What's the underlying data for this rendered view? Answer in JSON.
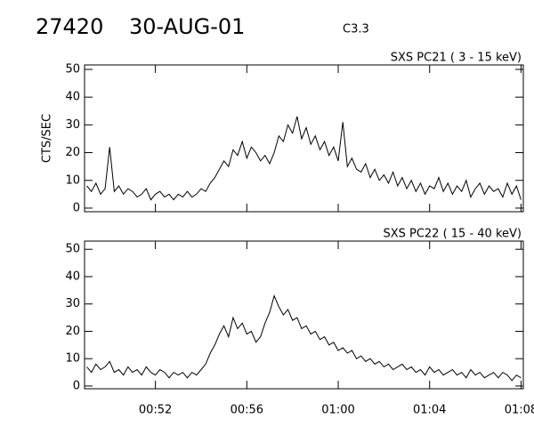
{
  "header": {
    "id": "27420",
    "date": "30-AUG-01",
    "class": "C3.3"
  },
  "chart_data": [
    {
      "type": "line",
      "title": "SXS PC21  (  3 - 15 keV)",
      "ylabel": "CTS/SEC",
      "color": "#000000",
      "xlim": [
        48.9,
        68.1
      ],
      "ylim": [
        -1.3,
        51.6
      ],
      "yticks": [
        0,
        10,
        20,
        30,
        40,
        50
      ],
      "xticks": [
        52,
        56,
        60,
        64,
        68
      ],
      "x": [
        49.0,
        49.2,
        49.4,
        49.6,
        49.8,
        50.0,
        50.2,
        50.4,
        50.6,
        50.8,
        51.0,
        51.2,
        51.4,
        51.6,
        51.8,
        52.0,
        52.2,
        52.4,
        52.6,
        52.8,
        53.0,
        53.2,
        53.4,
        53.6,
        53.8,
        54.0,
        54.2,
        54.4,
        54.6,
        54.8,
        55.0,
        55.2,
        55.4,
        55.6,
        55.8,
        56.0,
        56.2,
        56.4,
        56.6,
        56.8,
        57.0,
        57.2,
        57.4,
        57.6,
        57.8,
        58.0,
        58.2,
        58.4,
        58.6,
        58.8,
        59.0,
        59.2,
        59.4,
        59.6,
        59.8,
        60.0,
        60.2,
        60.4,
        60.6,
        60.8,
        61.0,
        61.2,
        61.4,
        61.6,
        61.8,
        62.0,
        62.2,
        62.4,
        62.6,
        62.8,
        63.0,
        63.2,
        63.4,
        63.6,
        63.8,
        64.0,
        64.2,
        64.4,
        64.6,
        64.8,
        65.0,
        65.2,
        65.4,
        65.6,
        65.8,
        66.0,
        66.2,
        66.4,
        66.6,
        66.8,
        67.0,
        67.2,
        67.4,
        67.6,
        67.8,
        68.0
      ],
      "values": [
        8,
        6,
        9,
        5,
        7,
        22,
        6,
        8,
        5,
        7,
        6,
        4,
        5,
        7,
        3,
        5,
        6,
        4,
        5,
        3,
        5,
        4,
        6,
        4,
        5,
        7,
        6,
        9,
        11,
        14,
        17,
        15,
        21,
        19,
        24,
        18,
        22,
        20,
        17,
        19,
        16,
        20,
        26,
        24,
        30,
        27,
        33,
        25,
        29,
        23,
        26,
        21,
        24,
        19,
        22,
        17,
        31,
        15,
        18,
        14,
        13,
        16,
        11,
        14,
        10,
        12,
        9,
        13,
        8,
        11,
        7,
        10,
        6,
        9,
        5,
        8,
        7,
        11,
        6,
        9,
        5,
        8,
        6,
        10,
        4,
        7,
        9,
        5,
        8,
        6,
        7,
        4,
        9,
        5,
        8,
        3
      ]
    },
    {
      "type": "line",
      "title": "SXS PC22  ( 15 - 40 keV)",
      "color": "#000000",
      "xlim": [
        48.9,
        68.1
      ],
      "ylim": [
        -1,
        53
      ],
      "yticks": [
        0,
        10,
        20,
        30,
        40,
        50
      ],
      "xticks": [
        {
          "value": 52,
          "label": "00:52"
        },
        {
          "value": 56,
          "label": "00:56"
        },
        {
          "value": 60,
          "label": "01:00"
        },
        {
          "value": 64,
          "label": "01:04"
        },
        {
          "value": 68,
          "label": "01:08"
        }
      ],
      "x": [
        49.0,
        49.2,
        49.4,
        49.6,
        49.8,
        50.0,
        50.2,
        50.4,
        50.6,
        50.8,
        51.0,
        51.2,
        51.4,
        51.6,
        51.8,
        52.0,
        52.2,
        52.4,
        52.6,
        52.8,
        53.0,
        53.2,
        53.4,
        53.6,
        53.8,
        54.0,
        54.2,
        54.4,
        54.6,
        54.8,
        55.0,
        55.2,
        55.4,
        55.6,
        55.8,
        56.0,
        56.2,
        56.4,
        56.6,
        56.8,
        57.0,
        57.2,
        57.4,
        57.6,
        57.8,
        58.0,
        58.2,
        58.4,
        58.6,
        58.8,
        59.0,
        59.2,
        59.4,
        59.6,
        59.8,
        60.0,
        60.2,
        60.4,
        60.6,
        60.8,
        61.0,
        61.2,
        61.4,
        61.6,
        61.8,
        62.0,
        62.2,
        62.4,
        62.6,
        62.8,
        63.0,
        63.2,
        63.4,
        63.6,
        63.8,
        64.0,
        64.2,
        64.4,
        64.6,
        64.8,
        65.0,
        65.2,
        65.4,
        65.6,
        65.8,
        66.0,
        66.2,
        66.4,
        66.6,
        66.8,
        67.0,
        67.2,
        67.4,
        67.6,
        67.8,
        68.0
      ],
      "values": [
        7,
        5,
        8,
        6,
        7,
        9,
        5,
        6,
        4,
        7,
        5,
        6,
        4,
        7,
        5,
        4,
        6,
        5,
        3,
        5,
        4,
        5,
        3,
        5,
        4,
        6,
        8,
        12,
        15,
        19,
        22,
        18,
        25,
        21,
        23,
        19,
        20,
        16,
        18,
        23,
        27,
        33,
        29,
        26,
        28,
        24,
        25,
        21,
        22,
        19,
        20,
        17,
        18,
        15,
        16,
        13,
        14,
        12,
        13,
        10,
        11,
        9,
        10,
        8,
        9,
        7,
        8,
        6,
        7,
        8,
        6,
        7,
        5,
        6,
        4,
        7,
        5,
        6,
        4,
        5,
        6,
        4,
        5,
        3,
        6,
        4,
        5,
        3,
        4,
        5,
        3,
        5,
        4,
        2,
        4,
        3
      ]
    }
  ]
}
